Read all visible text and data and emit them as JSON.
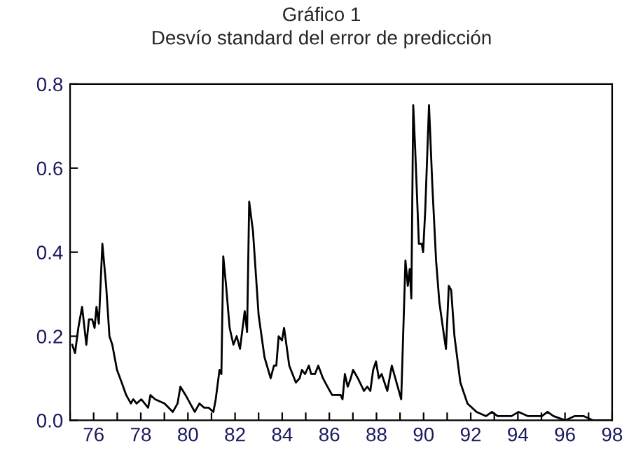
{
  "chart_data": {
    "type": "line",
    "title": "Gráfico 1",
    "subtitle": "Desvío standard del error de predicción",
    "x": [
      75.09,
      75.21,
      75.35,
      75.51,
      75.69,
      75.8,
      75.94,
      76.04,
      76.12,
      76.22,
      76.37,
      76.53,
      76.67,
      76.79,
      76.99,
      77.19,
      77.38,
      77.58,
      77.68,
      77.82,
      78.02,
      78.31,
      78.41,
      78.61,
      79.01,
      79.36,
      79.56,
      79.68,
      79.9,
      80.29,
      80.49,
      80.69,
      80.88,
      81.08,
      81.18,
      81.34,
      81.42,
      81.5,
      81.62,
      81.77,
      81.93,
      82.07,
      82.21,
      82.41,
      82.51,
      82.6,
      82.76,
      83.0,
      83.25,
      83.51,
      83.65,
      83.75,
      83.85,
      83.99,
      84.08,
      84.3,
      84.58,
      84.74,
      84.84,
      84.97,
      85.13,
      85.23,
      85.39,
      85.53,
      85.73,
      85.92,
      86.12,
      86.32,
      86.48,
      86.56,
      86.66,
      86.78,
      86.91,
      87.01,
      87.21,
      87.47,
      87.61,
      87.74,
      87.86,
      87.98,
      88.1,
      88.22,
      88.46,
      88.65,
      88.85,
      89.05,
      89.23,
      89.33,
      89.41,
      89.48,
      89.56,
      89.64,
      89.8,
      89.92,
      89.98,
      90.07,
      90.23,
      90.37,
      90.53,
      90.67,
      90.87,
      90.95,
      91.07,
      91.17,
      91.31,
      91.56,
      91.86,
      92.25,
      92.65,
      92.9,
      93.14,
      93.73,
      94.03,
      94.43,
      95.02,
      95.26,
      95.51,
      96.01,
      96.4,
      96.8,
      97.19,
      97.98
    ],
    "series": [
      {
        "color": "#000000",
        "values": [
          0.18,
          0.16,
          0.22,
          0.27,
          0.18,
          0.24,
          0.24,
          0.22,
          0.27,
          0.23,
          0.42,
          0.32,
          0.2,
          0.18,
          0.12,
          0.09,
          0.06,
          0.04,
          0.05,
          0.04,
          0.05,
          0.03,
          0.06,
          0.05,
          0.04,
          0.02,
          0.04,
          0.08,
          0.06,
          0.02,
          0.04,
          0.03,
          0.03,
          0.02,
          0.05,
          0.12,
          0.11,
          0.39,
          0.32,
          0.22,
          0.18,
          0.2,
          0.17,
          0.26,
          0.21,
          0.52,
          0.45,
          0.25,
          0.15,
          0.1,
          0.13,
          0.13,
          0.2,
          0.19,
          0.22,
          0.13,
          0.09,
          0.1,
          0.12,
          0.11,
          0.13,
          0.11,
          0.11,
          0.13,
          0.1,
          0.08,
          0.06,
          0.06,
          0.06,
          0.05,
          0.11,
          0.08,
          0.1,
          0.12,
          0.1,
          0.07,
          0.08,
          0.07,
          0.12,
          0.14,
          0.1,
          0.11,
          0.07,
          0.13,
          0.09,
          0.05,
          0.38,
          0.32,
          0.36,
          0.29,
          0.75,
          0.65,
          0.42,
          0.42,
          0.4,
          0.5,
          0.75,
          0.56,
          0.38,
          0.28,
          0.2,
          0.17,
          0.32,
          0.31,
          0.2,
          0.09,
          0.04,
          0.02,
          0.01,
          0.02,
          0.01,
          0.01,
          0.02,
          0.01,
          0.01,
          0.02,
          0.01,
          0.0,
          0.01,
          0.01,
          0.0,
          0.0
        ]
      }
    ],
    "xlim": [
      75,
      98
    ],
    "ylim": [
      0,
      0.8
    ],
    "xticks": [
      {
        "value": 75,
        "label": null
      },
      {
        "value": 76,
        "label": "76"
      },
      {
        "value": 77,
        "label": null
      },
      {
        "value": 78,
        "label": "78"
      },
      {
        "value": 79,
        "label": null
      },
      {
        "value": 80,
        "label": "80"
      },
      {
        "value": 81,
        "label": null
      },
      {
        "value": 82,
        "label": "82"
      },
      {
        "value": 83,
        "label": null
      },
      {
        "value": 84,
        "label": "84"
      },
      {
        "value": 85,
        "label": null
      },
      {
        "value": 86,
        "label": "86"
      },
      {
        "value": 87,
        "label": null
      },
      {
        "value": 88,
        "label": "88"
      },
      {
        "value": 89,
        "label": null
      },
      {
        "value": 90,
        "label": "90"
      },
      {
        "value": 91,
        "label": null
      },
      {
        "value": 92,
        "label": "92"
      },
      {
        "value": 93,
        "label": null
      },
      {
        "value": 94,
        "label": "94"
      },
      {
        "value": 95,
        "label": null
      },
      {
        "value": 96,
        "label": "96"
      },
      {
        "value": 97,
        "label": null
      },
      {
        "value": 98,
        "label": "98"
      }
    ],
    "yticks": [
      {
        "value": 0,
        "label": "0.0"
      },
      {
        "value": 0.2,
        "label": "0.2"
      },
      {
        "value": 0.4,
        "label": "0.4"
      },
      {
        "value": 0.6,
        "label": "0.6"
      },
      {
        "value": 0.8,
        "label": "0.8"
      }
    ],
    "grid": false,
    "legend": false,
    "marker": "none",
    "line_style": "solid"
  }
}
